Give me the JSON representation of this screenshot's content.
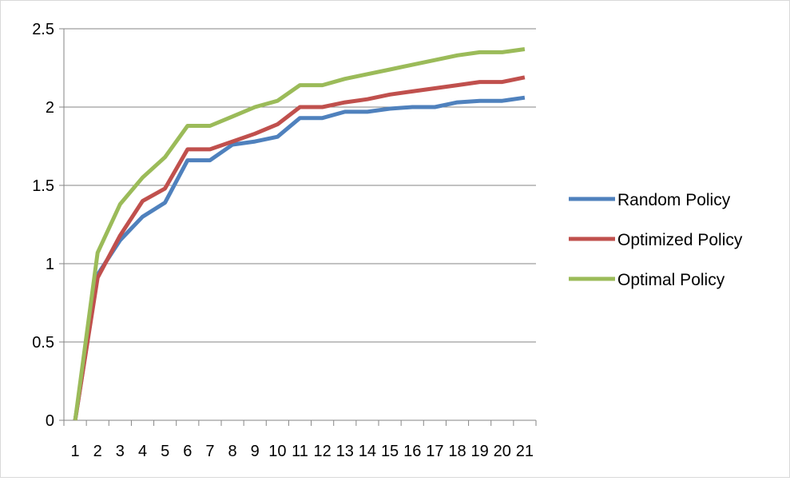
{
  "chart_data": {
    "type": "line",
    "title": "",
    "xlabel": "",
    "ylabel": "",
    "categories": [
      "1",
      "2",
      "3",
      "4",
      "5",
      "6",
      "7",
      "8",
      "9",
      "10",
      "11",
      "12",
      "13",
      "14",
      "15",
      "16",
      "17",
      "18",
      "19",
      "20",
      "21"
    ],
    "ylim": [
      0,
      2.5
    ],
    "yticks": [
      "0",
      "0.5",
      "1",
      "1.5",
      "2",
      "2.5"
    ],
    "grid": "horizontal",
    "legend_position": "right",
    "series": [
      {
        "name": "Random Policy",
        "color": "#4F81BD",
        "values": [
          0,
          0.93,
          1.15,
          1.3,
          1.39,
          1.66,
          1.66,
          1.76,
          1.78,
          1.81,
          1.93,
          1.93,
          1.97,
          1.97,
          1.99,
          2.0,
          2.0,
          2.03,
          2.04,
          2.04,
          2.06
        ]
      },
      {
        "name": "Optimized Policy",
        "color": "#C0504D",
        "values": [
          0,
          0.91,
          1.18,
          1.4,
          1.48,
          1.73,
          1.73,
          1.78,
          1.83,
          1.89,
          2.0,
          2.0,
          2.03,
          2.05,
          2.08,
          2.1,
          2.12,
          2.14,
          2.16,
          2.16,
          2.19
        ]
      },
      {
        "name": "Optimal Policy",
        "color": "#9BBB59",
        "values": [
          0,
          1.07,
          1.38,
          1.55,
          1.68,
          1.88,
          1.88,
          1.94,
          2.0,
          2.04,
          2.14,
          2.14,
          2.18,
          2.21,
          2.24,
          2.27,
          2.3,
          2.33,
          2.35,
          2.35,
          2.37
        ]
      }
    ]
  }
}
